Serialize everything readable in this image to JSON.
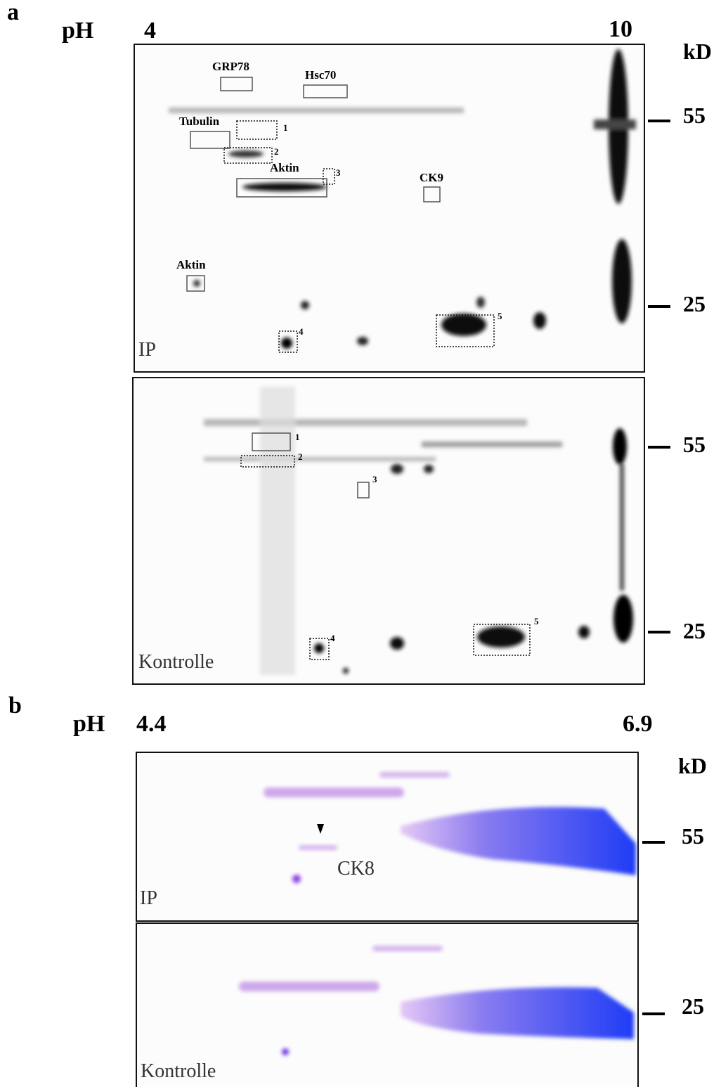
{
  "panel_a": {
    "label": "a",
    "ph_label": "pH",
    "ph_min": "4",
    "ph_max": "10",
    "unit": "kD",
    "ip_gel": {
      "name": "IP",
      "markers": [
        "55",
        "25"
      ],
      "proteins": [
        "GRP78",
        "Hsc70",
        "Tubulin",
        "Aktin",
        "CK9",
        "Aktin"
      ],
      "spots": [
        "1",
        "2",
        "3",
        "4",
        "5"
      ]
    },
    "control_gel": {
      "name": "Kontrolle",
      "markers": [
        "55",
        "25"
      ],
      "spots": [
        "1",
        "2",
        "3",
        "4",
        "5"
      ]
    }
  },
  "panel_b": {
    "label": "b",
    "ph_label": "pH",
    "ph_min": "4.4",
    "ph_max": "6.9",
    "unit": "kD",
    "markers": [
      "55",
      "25"
    ],
    "protein": "CK8",
    "ip_name": "IP",
    "control_name": "Kontrolle"
  }
}
